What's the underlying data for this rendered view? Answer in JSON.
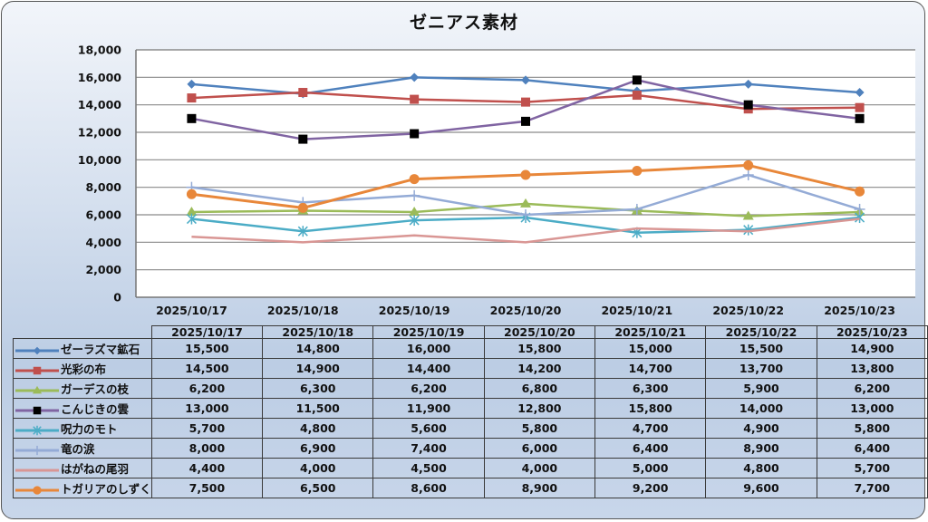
{
  "chart_data": {
    "type": "line",
    "title": "ゼニアス素材",
    "xlabel": "",
    "ylabel": "",
    "ylim": [
      0,
      18000
    ],
    "yticks": [
      "0",
      "2,000",
      "4,000",
      "6,000",
      "8,000",
      "10,000",
      "12,000",
      "14,000",
      "16,000",
      "18,000"
    ],
    "ytick_values": [
      0,
      2000,
      4000,
      6000,
      8000,
      10000,
      12000,
      14000,
      16000,
      18000
    ],
    "grid": true,
    "legend": "data-table-below",
    "categories": [
      "2025/10/17",
      "2025/10/18",
      "2025/10/19",
      "2025/10/20",
      "2025/10/21",
      "2025/10/22",
      "2025/10/23"
    ],
    "series": [
      {
        "name": "ゼーラズマ鉱石",
        "color": "#4f81bd",
        "marker": "diamond",
        "values": [
          15500,
          14800,
          16000,
          15800,
          15000,
          15500,
          14900
        ],
        "labels": [
          "15,500",
          "14,800",
          "16,000",
          "15,800",
          "15,000",
          "15,500",
          "14,900"
        ]
      },
      {
        "name": "光彩の布",
        "color": "#c0504d",
        "marker": "square",
        "values": [
          14500,
          14900,
          14400,
          14200,
          14700,
          13700,
          13800
        ],
        "labels": [
          "14,500",
          "14,900",
          "14,400",
          "14,200",
          "14,700",
          "13,700",
          "13,800"
        ]
      },
      {
        "name": "ガーデスの枝",
        "color": "#9bbb59",
        "marker": "triangle",
        "values": [
          6200,
          6300,
          6200,
          6800,
          6300,
          5900,
          6200
        ],
        "labels": [
          "6,200",
          "6,300",
          "6,200",
          "6,800",
          "6,300",
          "5,900",
          "6,200"
        ]
      },
      {
        "name": "こんじきの雲",
        "color": "#8064a2",
        "marker": "square-black",
        "values": [
          13000,
          11500,
          11900,
          12800,
          15800,
          14000,
          13000
        ],
        "labels": [
          "13,000",
          "11,500",
          "11,900",
          "12,800",
          "15,800",
          "14,000",
          "13,000"
        ]
      },
      {
        "name": "呪力のモト",
        "color": "#4bacc6",
        "marker": "asterisk",
        "values": [
          5700,
          4800,
          5600,
          5800,
          4700,
          4900,
          5800
        ],
        "labels": [
          "5,700",
          "4,800",
          "5,600",
          "5,800",
          "4,700",
          "4,900",
          "5,800"
        ]
      },
      {
        "name": "竜の涙",
        "color": "#94abd6",
        "marker": "plus",
        "values": [
          8000,
          6900,
          7400,
          6000,
          6400,
          8900,
          6400
        ],
        "labels": [
          "8,000",
          "6,900",
          "7,400",
          "6,000",
          "6,400",
          "8,900",
          "6,400"
        ]
      },
      {
        "name": "はがねの尾羽",
        "color": "#d99694",
        "marker": "none",
        "values": [
          4400,
          4000,
          4500,
          4000,
          5000,
          4800,
          5700
        ],
        "labels": [
          "4,400",
          "4,000",
          "4,500",
          "4,000",
          "5,000",
          "4,800",
          "5,700"
        ]
      },
      {
        "name": "トガリアのしずく",
        "color": "#e8873a",
        "marker": "circle",
        "values": [
          7500,
          6500,
          8600,
          8900,
          9200,
          9600,
          7700
        ],
        "labels": [
          "7,500",
          "6,500",
          "8,600",
          "8,900",
          "9,200",
          "9,600",
          "7,700"
        ]
      }
    ]
  }
}
